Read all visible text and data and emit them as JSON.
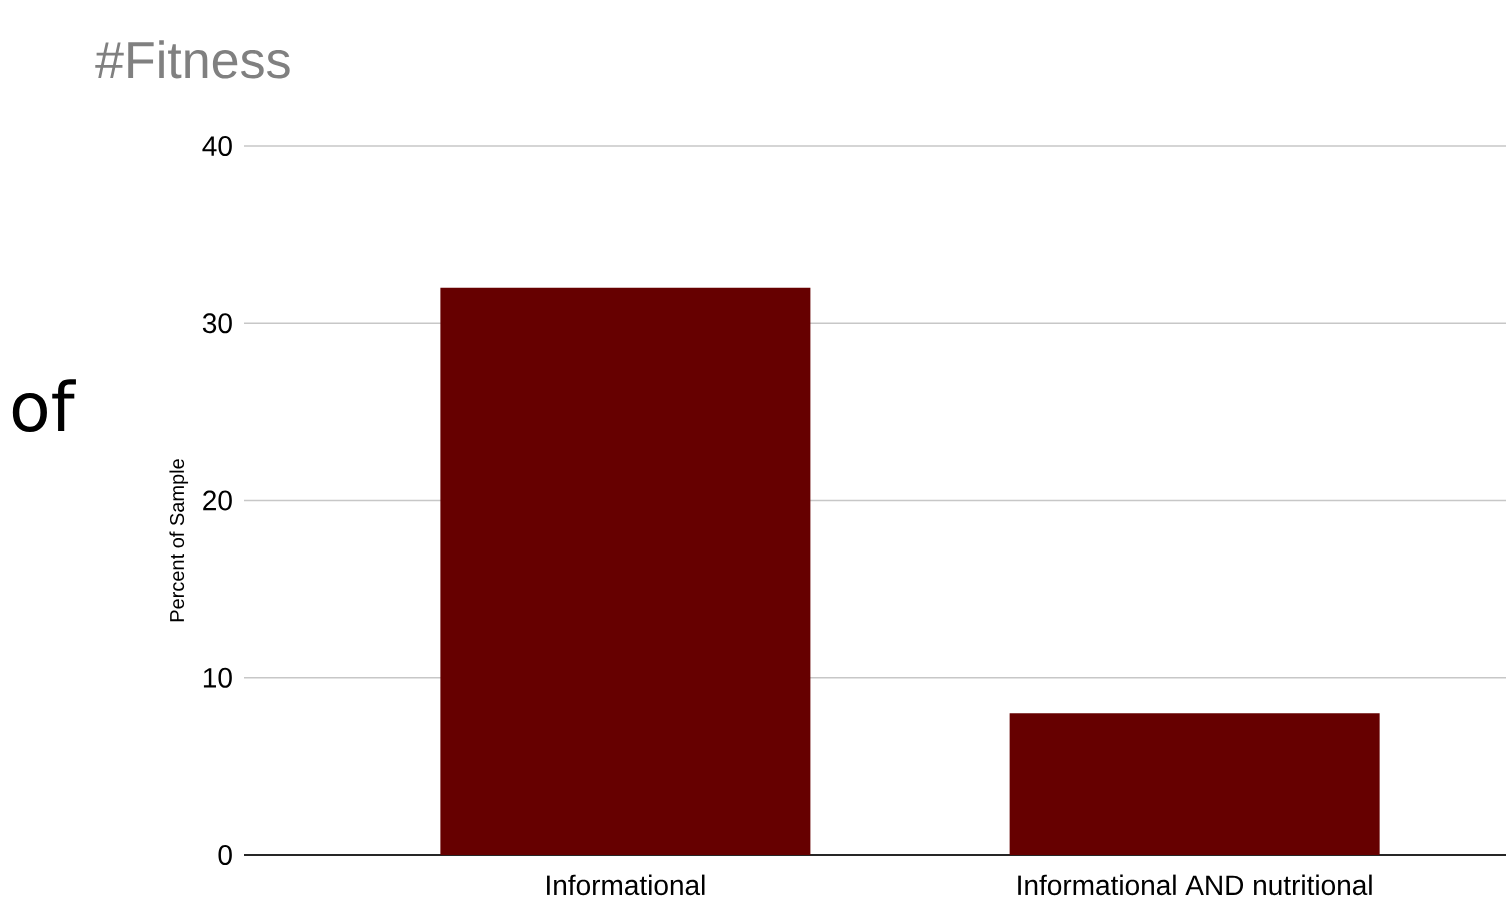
{
  "chart_data": {
    "type": "bar",
    "title": "#Fitness",
    "ylabel": "Percent of Sample",
    "categories": [
      "Informational",
      "Informational AND nutritional"
    ],
    "values": [
      32,
      8
    ],
    "color": "#660000",
    "ylim": [
      0,
      40
    ],
    "yticks": [
      0,
      10,
      20,
      30,
      40
    ],
    "grid": "y",
    "annotations": [
      "of"
    ]
  }
}
